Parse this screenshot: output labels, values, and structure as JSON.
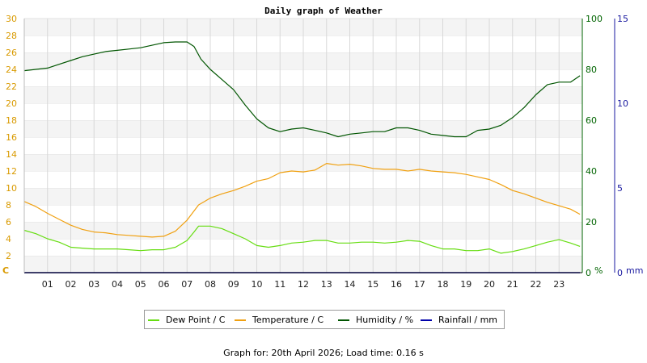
{
  "chart_data": {
    "type": "line",
    "title": "Daily graph of Weather",
    "x_ticks": [
      "01",
      "02",
      "03",
      "04",
      "05",
      "06",
      "07",
      "08",
      "09",
      "10",
      "11",
      "12",
      "13",
      "14",
      "15",
      "16",
      "17",
      "18",
      "19",
      "20",
      "21",
      "22",
      "23"
    ],
    "x_range": [
      0,
      24
    ],
    "left_axis": {
      "unit": "C",
      "range": [
        0,
        30
      ],
      "ticks": [
        0,
        2,
        4,
        6,
        8,
        10,
        12,
        14,
        16,
        18,
        20,
        22,
        24,
        26,
        28,
        30
      ]
    },
    "right_axis_humidity": {
      "unit": "%",
      "range": [
        0,
        100
      ],
      "ticks": [
        0,
        20,
        40,
        60,
        80,
        100
      ]
    },
    "right_axis_rain": {
      "unit": "mm",
      "range": [
        0,
        15
      ],
      "ticks": [
        0,
        5,
        10,
        15
      ]
    },
    "legend": [
      "Dew Point / C",
      "Temperature / C",
      "Humidity / %",
      "Rainfall / mm"
    ],
    "colors": {
      "dew_point": "#66dd11",
      "temperature": "#f0a010",
      "humidity": "#005500",
      "rainfall": "#0000aa",
      "left_axis": "#d99a00",
      "humidity_axis": "#006400",
      "rain_axis": "#1a1aa0"
    },
    "series": [
      {
        "name": "Dew Point / C",
        "axis": "left",
        "x": [
          0,
          0.5,
          1,
          1.5,
          2,
          2.5,
          3,
          3.5,
          4,
          4.5,
          5,
          5.5,
          6,
          6.5,
          7,
          7.3,
          7.5,
          8,
          8.5,
          9,
          9.5,
          10,
          10.5,
          11,
          11.5,
          12,
          12.5,
          13,
          13.5,
          14,
          14.5,
          15,
          15.5,
          16,
          16.5,
          17,
          17.5,
          18,
          18.5,
          19,
          19.5,
          20,
          20.5,
          21,
          21.5,
          22,
          22.5,
          23,
          23.5,
          23.9
        ],
        "values": [
          5.0,
          4.6,
          4.0,
          3.6,
          3.0,
          2.9,
          2.8,
          2.8,
          2.8,
          2.7,
          2.6,
          2.7,
          2.7,
          3.0,
          3.8,
          4.8,
          5.5,
          5.5,
          5.2,
          4.6,
          4.0,
          3.2,
          3.0,
          3.2,
          3.5,
          3.6,
          3.8,
          3.8,
          3.5,
          3.5,
          3.6,
          3.6,
          3.5,
          3.6,
          3.8,
          3.7,
          3.2,
          2.8,
          2.8,
          2.6,
          2.6,
          2.8,
          2.3,
          2.5,
          2.8,
          3.2,
          3.6,
          3.9,
          3.5,
          3.1
        ]
      },
      {
        "name": "Temperature / C",
        "axis": "left",
        "x": [
          0,
          0.5,
          1,
          1.5,
          2,
          2.5,
          3,
          3.5,
          4,
          4.5,
          5,
          5.5,
          6,
          6.5,
          7,
          7.5,
          8,
          8.5,
          9,
          9.5,
          10,
          10.5,
          11,
          11.5,
          12,
          12.5,
          13,
          13.5,
          14,
          14.5,
          15,
          15.5,
          16,
          16.5,
          17,
          17.5,
          18,
          18.5,
          19,
          19.5,
          20,
          20.5,
          21,
          21.5,
          22,
          22.5,
          23,
          23.5,
          23.9
        ],
        "values": [
          8.4,
          7.8,
          7.0,
          6.3,
          5.6,
          5.1,
          4.8,
          4.7,
          4.5,
          4.4,
          4.3,
          4.2,
          4.3,
          4.9,
          6.2,
          8.0,
          8.8,
          9.3,
          9.7,
          10.2,
          10.8,
          11.1,
          11.8,
          12.0,
          11.9,
          12.1,
          12.9,
          12.7,
          12.8,
          12.6,
          12.3,
          12.2,
          12.2,
          12.0,
          12.2,
          12.0,
          11.9,
          11.8,
          11.6,
          11.3,
          11.0,
          10.4,
          9.7,
          9.3,
          8.8,
          8.3,
          7.9,
          7.5,
          6.9
        ]
      },
      {
        "name": "Humidity / %",
        "axis": "right_humidity",
        "x": [
          0,
          0.5,
          1,
          1.5,
          2,
          2.5,
          3,
          3.5,
          4,
          4.5,
          5,
          5.5,
          6,
          6.5,
          7,
          7.3,
          7.6,
          8,
          8.5,
          9,
          9.5,
          10,
          10.5,
          11,
          11.5,
          12,
          12.5,
          13,
          13.5,
          14,
          14.5,
          15,
          15.5,
          16,
          16.5,
          17,
          17.5,
          18,
          18.5,
          19,
          19.5,
          20,
          20.5,
          21,
          21.5,
          22,
          22.5,
          23,
          23.5,
          23.9
        ],
        "values": [
          79.5,
          80.0,
          80.5,
          82.0,
          83.5,
          85.0,
          86.0,
          87.0,
          87.5,
          88.0,
          88.5,
          89.5,
          90.5,
          90.8,
          90.8,
          89.0,
          84.0,
          80.0,
          76.0,
          72.0,
          66.0,
          60.5,
          57.0,
          55.5,
          56.5,
          57.0,
          56.0,
          55.0,
          53.5,
          54.5,
          55.0,
          55.5,
          55.5,
          57.0,
          57.0,
          56.0,
          54.5,
          54.0,
          53.5,
          53.5,
          56.0,
          56.5,
          58.0,
          61.0,
          65.0,
          70.0,
          74.0,
          75.0,
          75.0,
          77.5
        ]
      },
      {
        "name": "Rainfall / mm",
        "axis": "right_rain",
        "x": [
          0,
          23.9
        ],
        "values": [
          0,
          0
        ]
      }
    ],
    "grid": true,
    "legend_placement": "bottom"
  },
  "footer": "Graph for: 20th April 2026; Load time: 0.16 s"
}
